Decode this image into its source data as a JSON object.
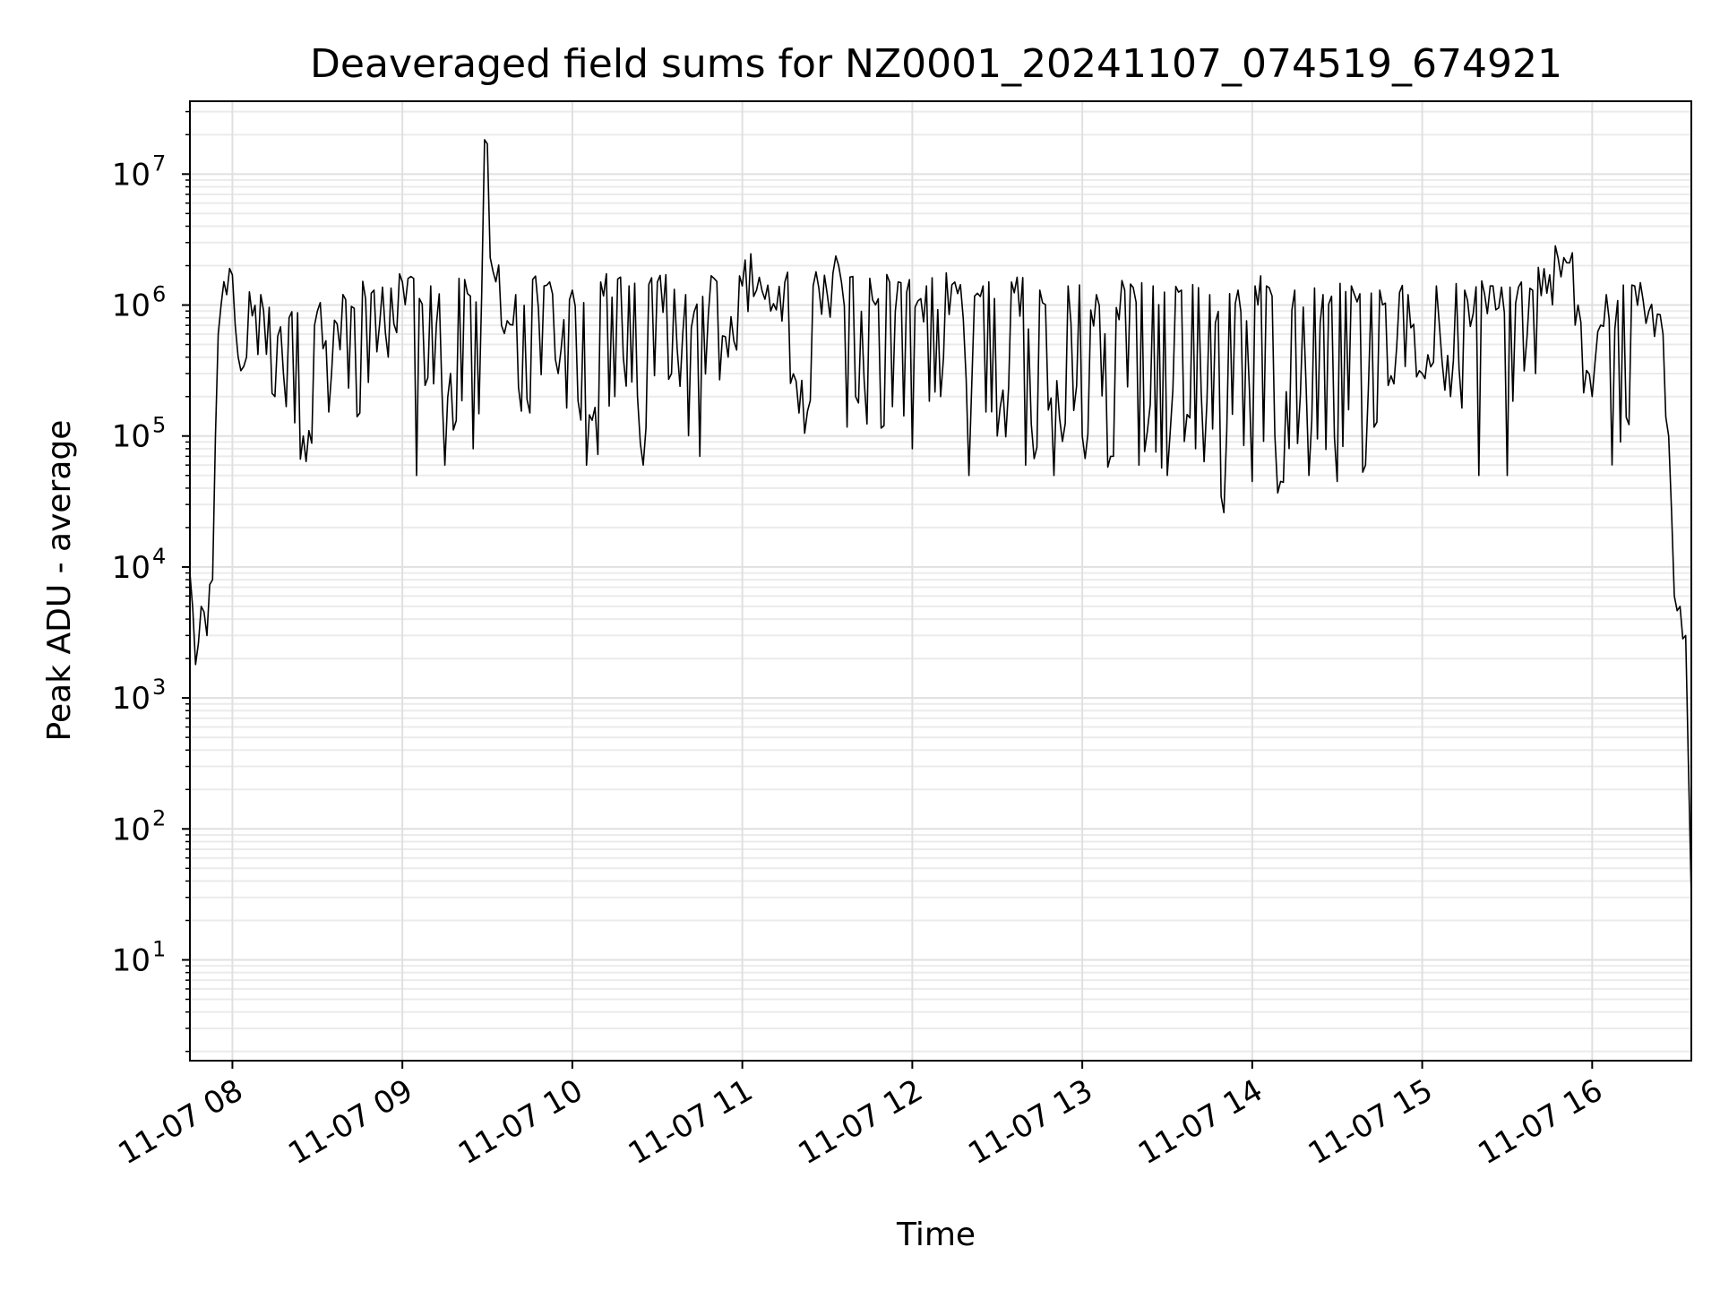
{
  "chart_data": {
    "type": "line",
    "title": "Deaveraged field sums for NZ0001_20241107_074519_674921",
    "xlabel": "Time",
    "ylabel": "Peak ADU - average",
    "yscale": "log",
    "grid": true,
    "xlim": [
      "2024-11-07 07:45",
      "2024-11-07 16:35"
    ],
    "ylim": [
      1.7,
      36000000
    ],
    "x_ticks": [
      {
        "value": "2024-11-07 08:00",
        "label": "11-07 08"
      },
      {
        "value": "2024-11-07 09:00",
        "label": "11-07 09"
      },
      {
        "value": "2024-11-07 10:00",
        "label": "11-07 10"
      },
      {
        "value": "2024-11-07 11:00",
        "label": "11-07 11"
      },
      {
        "value": "2024-11-07 12:00",
        "label": "11-07 12"
      },
      {
        "value": "2024-11-07 13:00",
        "label": "11-07 13"
      },
      {
        "value": "2024-11-07 14:00",
        "label": "11-07 14"
      },
      {
        "value": "2024-11-07 15:00",
        "label": "11-07 15"
      },
      {
        "value": "2024-11-07 16:00",
        "label": "11-07 16"
      }
    ],
    "y_ticks": [
      {
        "value": 10,
        "base": "10",
        "exp": "1"
      },
      {
        "value": 100,
        "base": "10",
        "exp": "2"
      },
      {
        "value": 1000,
        "base": "10",
        "exp": "3"
      },
      {
        "value": 10000,
        "base": "10",
        "exp": "4"
      },
      {
        "value": 100000,
        "base": "10",
        "exp": "5"
      },
      {
        "value": 1000000,
        "base": "10",
        "exp": "6"
      },
      {
        "value": 10000000,
        "base": "10",
        "exp": "7"
      }
    ],
    "series": [
      {
        "color": "#000000",
        "x": [
          "2024-11-07 07:45",
          "2024-11-07 07:47",
          "2024-11-07 07:49",
          "2024-11-07 07:51",
          "2024-11-07 07:53",
          "2024-11-07 07:54",
          "2024-11-07 07:55",
          "2024-11-07 07:56",
          "2024-11-07 07:58",
          "2024-11-07 08:00",
          "2024-11-07 08:05",
          "2024-11-07 08:10",
          "2024-11-07 08:15",
          "2024-11-07 08:20",
          "2024-11-07 08:25",
          "2024-11-07 08:30",
          "2024-11-07 08:35",
          "2024-11-07 08:40",
          "2024-11-07 08:45",
          "2024-11-07 08:50",
          "2024-11-07 08:55",
          "2024-11-07 09:00",
          "2024-11-07 09:05",
          "2024-11-07 09:10",
          "2024-11-07 09:15",
          "2024-11-07 09:20",
          "2024-11-07 09:25",
          "2024-11-07 09:28",
          "2024-11-07 09:30",
          "2024-11-07 09:32",
          "2024-11-07 09:35",
          "2024-11-07 09:40",
          "2024-11-07 09:45",
          "2024-11-07 09:50",
          "2024-11-07 09:55",
          "2024-11-07 10:00",
          "2024-11-07 10:05",
          "2024-11-07 10:10",
          "2024-11-07 10:15",
          "2024-11-07 10:20",
          "2024-11-07 10:25",
          "2024-11-07 10:30",
          "2024-11-07 10:35",
          "2024-11-07 10:40",
          "2024-11-07 10:45",
          "2024-11-07 10:50",
          "2024-11-07 10:55",
          "2024-11-07 11:00",
          "2024-11-07 11:05",
          "2024-11-07 11:10",
          "2024-11-07 11:15",
          "2024-11-07 11:20",
          "2024-11-07 11:25",
          "2024-11-07 11:30",
          "2024-11-07 11:35",
          "2024-11-07 11:40",
          "2024-11-07 11:45",
          "2024-11-07 11:50",
          "2024-11-07 11:55",
          "2024-11-07 12:00",
          "2024-11-07 12:05",
          "2024-11-07 12:10",
          "2024-11-07 12:15",
          "2024-11-07 12:20",
          "2024-11-07 12:25",
          "2024-11-07 12:30",
          "2024-11-07 12:35",
          "2024-11-07 12:40",
          "2024-11-07 12:45",
          "2024-11-07 12:50",
          "2024-11-07 12:55",
          "2024-11-07 13:00",
          "2024-11-07 13:05",
          "2024-11-07 13:10",
          "2024-11-07 13:15",
          "2024-11-07 13:20",
          "2024-11-07 13:25",
          "2024-11-07 13:30",
          "2024-11-07 13:35",
          "2024-11-07 13:40",
          "2024-11-07 13:45",
          "2024-11-07 13:50",
          "2024-11-07 13:55",
          "2024-11-07 14:00",
          "2024-11-07 14:05",
          "2024-11-07 14:10",
          "2024-11-07 14:15",
          "2024-11-07 14:20",
          "2024-11-07 14:25",
          "2024-11-07 14:30",
          "2024-11-07 14:35",
          "2024-11-07 14:40",
          "2024-11-07 14:45",
          "2024-11-07 14:50",
          "2024-11-07 14:55",
          "2024-11-07 15:00",
          "2024-11-07 15:05",
          "2024-11-07 15:10",
          "2024-11-07 15:15",
          "2024-11-07 15:20",
          "2024-11-07 15:25",
          "2024-11-07 15:30",
          "2024-11-07 15:35",
          "2024-11-07 15:40",
          "2024-11-07 15:45",
          "2024-11-07 15:50",
          "2024-11-07 15:55",
          "2024-11-07 16:00",
          "2024-11-07 16:05",
          "2024-11-07 16:10",
          "2024-11-07 16:15",
          "2024-11-07 16:20",
          "2024-11-07 16:25",
          "2024-11-07 16:27",
          "2024-11-07 16:29",
          "2024-11-07 16:31",
          "2024-11-07 16:33",
          "2024-11-07 16:35"
        ],
        "y": [
          9000,
          1800,
          5000,
          3000,
          8000,
          100000,
          600000,
          1000000,
          1200000,
          1700000,
          400000,
          1200000,
          200000,
          800000,
          100000,
          900000,
          300000,
          1100000,
          150000,
          1300000,
          400000,
          1500000,
          50000,
          1400000,
          60000,
          1600000,
          80000,
          1200000,
          17000000,
          1800000,
          700000,
          1200000,
          150000,
          1400000,
          300000,
          1300000,
          60000,
          1500000,
          200000,
          1400000,
          60000,
          1500000,
          300000,
          1200000,
          70000,
          1600000,
          400000,
          1400000,
          1300000,
          900000,
          1500000,
          150000,
          1400000,
          1200000,
          1500000,
          200000,
          1600000,
          120000,
          1500000,
          80000,
          1400000,
          200000,
          1500000,
          50000,
          1400000,
          100000,
          1500000,
          60000,
          1300000,
          50000,
          1400000,
          100000,
          1200000,
          70000,
          1300000,
          60000,
          1400000,
          50000,
          1300000,
          80000,
          1200000,
          26000,
          1300000,
          45000,
          1400000,
          45000,
          1300000,
          50000,
          1200000,
          45000,
          1400000,
          60000,
          1300000,
          250000,
          1200000,
          300000,
          1400000,
          200000,
          1300000,
          50000,
          1400000,
          50000,
          1500000,
          300000,
          1700000,
          2300000,
          1000000,
          200000,
          1200000,
          90000,
          1400000,
          900000,
          600000,
          100000,
          6000,
          5000,
          3000,
          30
        ]
      }
    ]
  }
}
